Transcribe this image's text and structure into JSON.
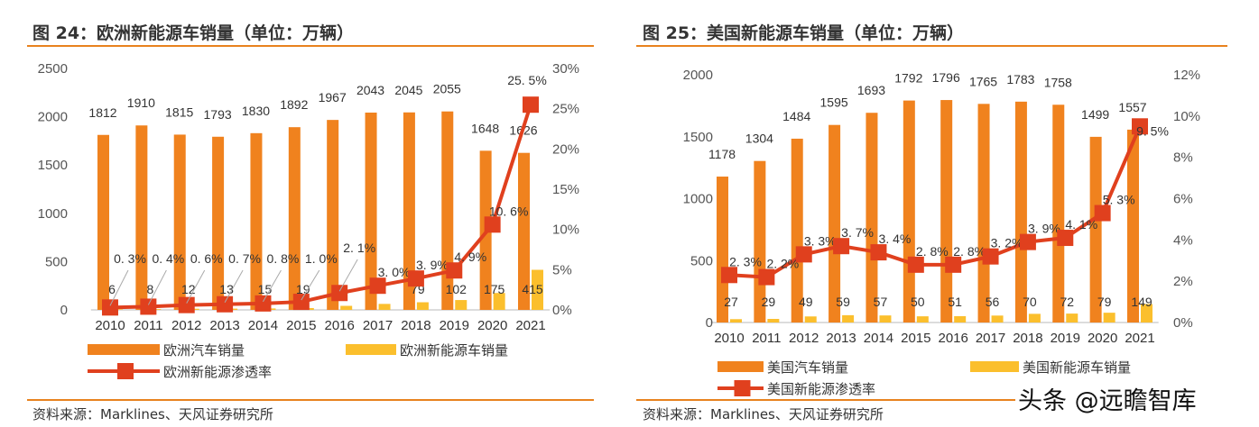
{
  "chart_data": [
    {
      "type": "bar+line",
      "title": "图 24：欧洲新能源车销量（单位：万辆）",
      "source": "资料来源：Marklines、天风证券研究所",
      "categories": [
        "2010",
        "2011",
        "2012",
        "2013",
        "2014",
        "2015",
        "2016",
        "2017",
        "2018",
        "2019",
        "2020",
        "2021"
      ],
      "ylim": [
        0,
        2500
      ],
      "yticks": [
        "0",
        "500",
        "1000",
        "1500",
        "2000",
        "2500"
      ],
      "y2lim": [
        0,
        30
      ],
      "y2ticks": [
        "0%",
        "5%",
        "10%",
        "15%",
        "20%",
        "25%",
        "30%"
      ],
      "series": [
        {
          "name": "欧洲汽车销量",
          "type": "bar",
          "axis": "left",
          "color": "#F0821E",
          "values": [
            1812,
            1910,
            1815,
            1793,
            1830,
            1892,
            1967,
            2043,
            2045,
            2055,
            1648,
            1626
          ]
        },
        {
          "name": "欧洲新能源车销量",
          "type": "bar",
          "axis": "left",
          "color": "#FBBF2D",
          "values": [
            6,
            8,
            12,
            13,
            15,
            19,
            42,
            62,
            79,
            102,
            175,
            415
          ]
        },
        {
          "name": "欧洲新能源渗透率",
          "type": "line",
          "axis": "right",
          "color": "#E0401E",
          "values": [
            0.3,
            0.4,
            0.6,
            0.7,
            0.8,
            1.0,
            2.1,
            3.0,
            3.9,
            4.9,
            10.6,
            25.5
          ],
          "labels": [
            "0. 3%",
            "0. 4%",
            "0. 6%",
            "0. 7%",
            "0. 8%",
            "1. 0%",
            "2. 1%",
            "3. 0%",
            "3. 9%",
            "4. 9%",
            "10. 6%",
            "25. 5%"
          ]
        }
      ],
      "legend": "bottom"
    },
    {
      "type": "bar+line",
      "title": "图 25：美国新能源车销量（单位：万辆）",
      "source": "资料来源：Marklines、天风证券研究所",
      "categories": [
        "2010",
        "2011",
        "2012",
        "2013",
        "2014",
        "2015",
        "2016",
        "2017",
        "2018",
        "2019",
        "2020",
        "2021"
      ],
      "ylim": [
        0,
        2000
      ],
      "yticks": [
        "0",
        "500",
        "1000",
        "1500",
        "2000"
      ],
      "y2lim": [
        0,
        12
      ],
      "y2ticks": [
        "0%",
        "2%",
        "4%",
        "6%",
        "8%",
        "10%",
        "12%"
      ],
      "series": [
        {
          "name": "美国汽车销量",
          "type": "bar",
          "axis": "left",
          "color": "#F0821E",
          "values": [
            1178,
            1304,
            1484,
            1595,
            1693,
            1792,
            1796,
            1765,
            1783,
            1758,
            1499,
            1557
          ]
        },
        {
          "name": "美国新能源车销量",
          "type": "bar",
          "axis": "left",
          "color": "#FBBF2D",
          "values": [
            27,
            29,
            49,
            59,
            57,
            50,
            51,
            56,
            70,
            72,
            79,
            149
          ]
        },
        {
          "name": "美国新能源渗透率",
          "type": "line",
          "axis": "right",
          "color": "#E0401E",
          "values": [
            2.3,
            2.2,
            3.3,
            3.7,
            3.4,
            2.8,
            2.8,
            3.2,
            3.9,
            4.1,
            5.3,
            9.5
          ],
          "labels": [
            "2. 3%",
            "2. 2%",
            "3. 3%",
            "3. 7%",
            "3. 4%",
            "2. 8%",
            "2. 8%",
            "3. 2%",
            "3. 9%",
            "4. 1%",
            "5. 3%",
            "9. 5%"
          ]
        }
      ],
      "legend": "bottom"
    }
  ],
  "watermark": "头条 @远瞻智库"
}
